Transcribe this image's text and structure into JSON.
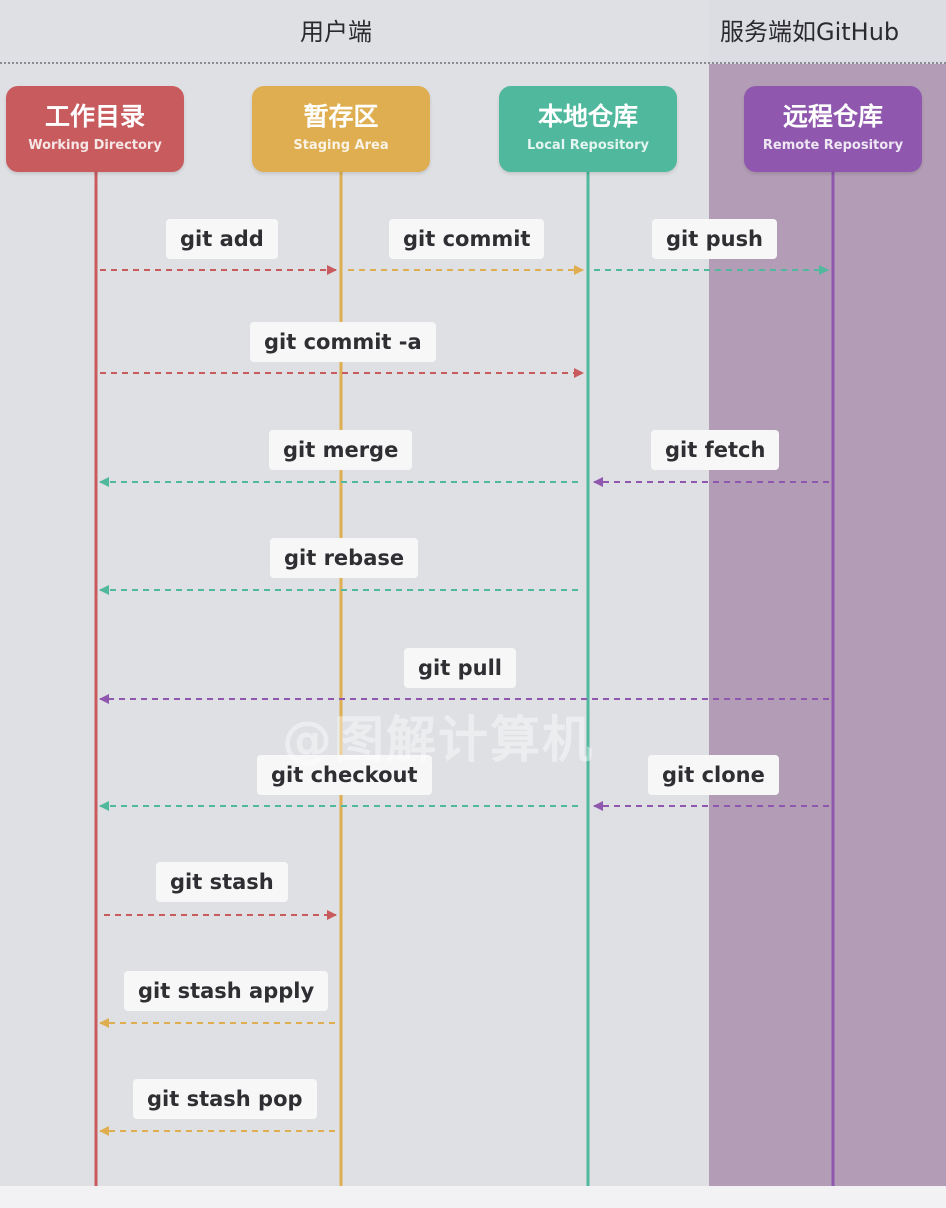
{
  "zones": {
    "user_label": "用户端",
    "server_label": "服务端如GitHub"
  },
  "lanes": {
    "working": {
      "zh": "工作目录",
      "en": "Working Directory"
    },
    "staging": {
      "zh": "暂存区",
      "en": "Staging Area"
    },
    "local": {
      "zh": "本地仓库",
      "en": "Local Repository"
    },
    "remote": {
      "zh": "远程仓库",
      "en": "Remote Repository"
    }
  },
  "commands": {
    "add": "git add",
    "commit": "git commit",
    "push": "git push",
    "commit_a": "git commit -a",
    "merge": "git merge",
    "fetch": "git fetch",
    "rebase": "git rebase",
    "pull": "git pull",
    "checkout": "git checkout",
    "clone": "git clone",
    "stash": "git stash",
    "stash_apply": "git stash apply",
    "stash_pop": "git stash pop"
  },
  "watermark": "@图解计算机",
  "colors": {
    "working": "#c85b5d",
    "staging": "#deae50",
    "local": "#4fb89d",
    "remote": "#8f58ae",
    "server_bg": "#b39db6",
    "user_bg": "#dfe0e4"
  }
}
